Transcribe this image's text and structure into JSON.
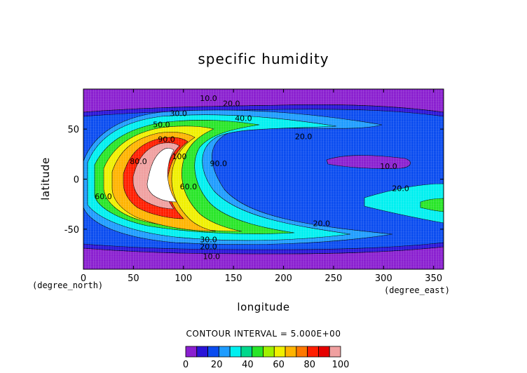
{
  "chart_data": {
    "type": "heatmap",
    "subtype": "filled-contour",
    "title": "specific humidity",
    "xlabel": "longitude",
    "ylabel": "latitude",
    "x_unit": "(degree_east)",
    "y_unit": "(degree_north)",
    "xlim": [
      0,
      360
    ],
    "ylim": [
      -90,
      90
    ],
    "x_ticks": [
      0,
      50,
      100,
      150,
      200,
      250,
      300,
      350
    ],
    "y_ticks": [
      -50,
      0,
      50
    ],
    "contour_interval_text": "CONTOUR INTERVAL = 5.000E+00",
    "colorbar": {
      "min": 0,
      "max": 100,
      "step": 10,
      "tick_values": [
        0,
        20,
        40,
        60,
        80,
        100
      ],
      "colors": [
        "#8a1fd0",
        "#2a14d8",
        "#0a4cf0",
        "#1e9cff",
        "#00f0f0",
        "#00d88c",
        "#28e628",
        "#a0f000",
        "#f0f000",
        "#ffb400",
        "#ff7800",
        "#ff1e00",
        "#e60000",
        "#f0a0a0",
        "#ffffff"
      ]
    },
    "grid": true,
    "series": [],
    "contour_labels": [
      {
        "text": "10.0",
        "lon": 125,
        "lat": 78
      },
      {
        "text": "20.0",
        "lon": 148,
        "lat": 73
      },
      {
        "text": "30.0",
        "lon": 95,
        "lat": 63
      },
      {
        "text": "40.0",
        "lon": 160,
        "lat": 58
      },
      {
        "text": "50.0",
        "lon": 78,
        "lat": 52
      },
      {
        "text": "90.0",
        "lon": 83,
        "lat": 37
      },
      {
        "text": "100",
        "lon": 96,
        "lat": 20
      },
      {
        "text": "80.0",
        "lon": 55,
        "lat": 15
      },
      {
        "text": "90.0",
        "lon": 135,
        "lat": 13
      },
      {
        "text": "20.0",
        "lon": 220,
        "lat": 40
      },
      {
        "text": "10.0",
        "lon": 305,
        "lat": 10
      },
      {
        "text": "20.0",
        "lon": 317,
        "lat": -12
      },
      {
        "text": "60.0",
        "lon": 105,
        "lat": -10
      },
      {
        "text": "60.0",
        "lon": 20,
        "lat": -20
      },
      {
        "text": "20.0",
        "lon": 238,
        "lat": -47
      },
      {
        "text": "30.0",
        "lon": 125,
        "lat": -63
      },
      {
        "text": "20.0",
        "lon": 125,
        "lat": -70
      },
      {
        "text": "10.0",
        "lon": 128,
        "lat": -80
      }
    ]
  }
}
